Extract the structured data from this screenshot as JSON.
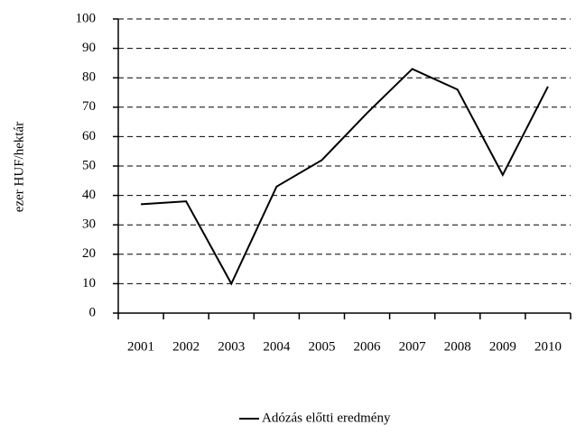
{
  "chart_data": {
    "type": "line",
    "y_label": "ezer HUF/hektár",
    "categories": [
      "2001",
      "2002",
      "2003",
      "2004",
      "2005",
      "2006",
      "2007",
      "2008",
      "2009",
      "2010"
    ],
    "series": [
      {
        "name": "Adózás előtti eredmény",
        "color": "#000000",
        "values": [
          37,
          38,
          10,
          43,
          52,
          68,
          83,
          76,
          47,
          77
        ]
      }
    ],
    "ylim": [
      0,
      100
    ],
    "yticks": [
      0,
      10,
      20,
      30,
      40,
      50,
      60,
      70,
      80,
      90,
      100
    ],
    "grid": true,
    "legend": "bottom"
  }
}
